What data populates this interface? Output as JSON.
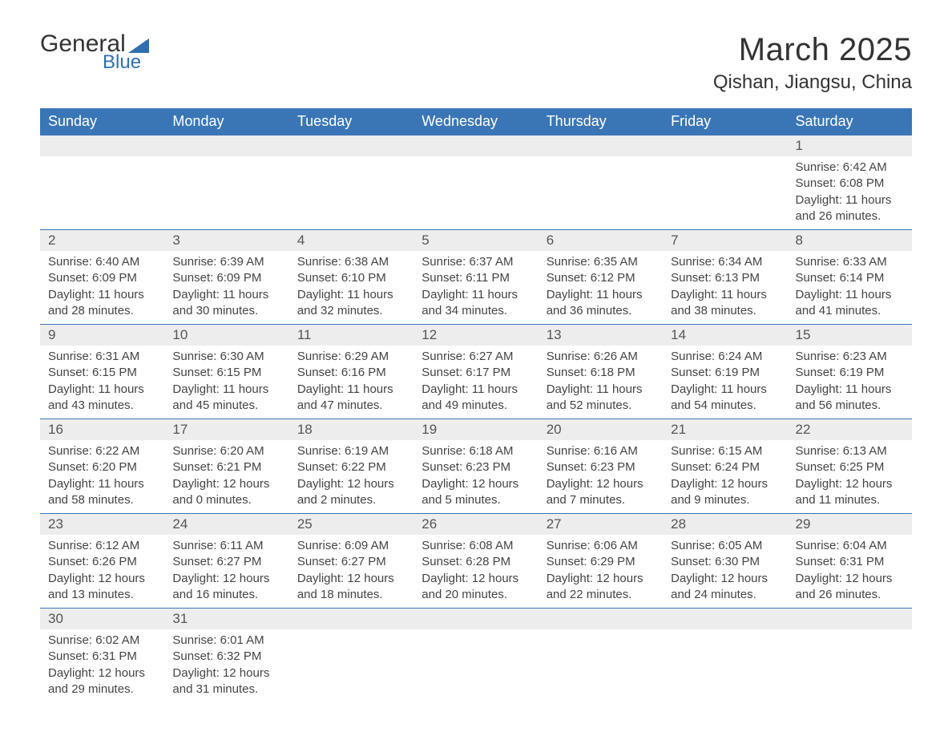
{
  "logo": {
    "text_general": "General",
    "text_blue": "Blue",
    "triangle_color": "#2f6fb0"
  },
  "title": "March 2025",
  "location": "Qishan, Jiangsu, China",
  "colors": {
    "header_bg": "#3a76b6",
    "header_text": "#ffffff",
    "daynum_bg": "#ededed",
    "row_divider": "#3a76b6",
    "body_text": "#444444",
    "title_text": "#333333"
  },
  "typography": {
    "title_fontsize": 40,
    "location_fontsize": 24,
    "header_fontsize": 18,
    "daynum_fontsize": 17,
    "info_fontsize": 15
  },
  "layout": {
    "columns": 7,
    "weeks": 6,
    "start_day_index": 6
  },
  "day_headers": [
    "Sunday",
    "Monday",
    "Tuesday",
    "Wednesday",
    "Thursday",
    "Friday",
    "Saturday"
  ],
  "weeks": [
    [
      null,
      null,
      null,
      null,
      null,
      null,
      {
        "n": "1",
        "sunrise": "Sunrise: 6:42 AM",
        "sunset": "Sunset: 6:08 PM",
        "daylight": "Daylight: 11 hours and 26 minutes."
      }
    ],
    [
      {
        "n": "2",
        "sunrise": "Sunrise: 6:40 AM",
        "sunset": "Sunset: 6:09 PM",
        "daylight": "Daylight: 11 hours and 28 minutes."
      },
      {
        "n": "3",
        "sunrise": "Sunrise: 6:39 AM",
        "sunset": "Sunset: 6:09 PM",
        "daylight": "Daylight: 11 hours and 30 minutes."
      },
      {
        "n": "4",
        "sunrise": "Sunrise: 6:38 AM",
        "sunset": "Sunset: 6:10 PM",
        "daylight": "Daylight: 11 hours and 32 minutes."
      },
      {
        "n": "5",
        "sunrise": "Sunrise: 6:37 AM",
        "sunset": "Sunset: 6:11 PM",
        "daylight": "Daylight: 11 hours and 34 minutes."
      },
      {
        "n": "6",
        "sunrise": "Sunrise: 6:35 AM",
        "sunset": "Sunset: 6:12 PM",
        "daylight": "Daylight: 11 hours and 36 minutes."
      },
      {
        "n": "7",
        "sunrise": "Sunrise: 6:34 AM",
        "sunset": "Sunset: 6:13 PM",
        "daylight": "Daylight: 11 hours and 38 minutes."
      },
      {
        "n": "8",
        "sunrise": "Sunrise: 6:33 AM",
        "sunset": "Sunset: 6:14 PM",
        "daylight": "Daylight: 11 hours and 41 minutes."
      }
    ],
    [
      {
        "n": "9",
        "sunrise": "Sunrise: 6:31 AM",
        "sunset": "Sunset: 6:15 PM",
        "daylight": "Daylight: 11 hours and 43 minutes."
      },
      {
        "n": "10",
        "sunrise": "Sunrise: 6:30 AM",
        "sunset": "Sunset: 6:15 PM",
        "daylight": "Daylight: 11 hours and 45 minutes."
      },
      {
        "n": "11",
        "sunrise": "Sunrise: 6:29 AM",
        "sunset": "Sunset: 6:16 PM",
        "daylight": "Daylight: 11 hours and 47 minutes."
      },
      {
        "n": "12",
        "sunrise": "Sunrise: 6:27 AM",
        "sunset": "Sunset: 6:17 PM",
        "daylight": "Daylight: 11 hours and 49 minutes."
      },
      {
        "n": "13",
        "sunrise": "Sunrise: 6:26 AM",
        "sunset": "Sunset: 6:18 PM",
        "daylight": "Daylight: 11 hours and 52 minutes."
      },
      {
        "n": "14",
        "sunrise": "Sunrise: 6:24 AM",
        "sunset": "Sunset: 6:19 PM",
        "daylight": "Daylight: 11 hours and 54 minutes."
      },
      {
        "n": "15",
        "sunrise": "Sunrise: 6:23 AM",
        "sunset": "Sunset: 6:19 PM",
        "daylight": "Daylight: 11 hours and 56 minutes."
      }
    ],
    [
      {
        "n": "16",
        "sunrise": "Sunrise: 6:22 AM",
        "sunset": "Sunset: 6:20 PM",
        "daylight": "Daylight: 11 hours and 58 minutes."
      },
      {
        "n": "17",
        "sunrise": "Sunrise: 6:20 AM",
        "sunset": "Sunset: 6:21 PM",
        "daylight": "Daylight: 12 hours and 0 minutes."
      },
      {
        "n": "18",
        "sunrise": "Sunrise: 6:19 AM",
        "sunset": "Sunset: 6:22 PM",
        "daylight": "Daylight: 12 hours and 2 minutes."
      },
      {
        "n": "19",
        "sunrise": "Sunrise: 6:18 AM",
        "sunset": "Sunset: 6:23 PM",
        "daylight": "Daylight: 12 hours and 5 minutes."
      },
      {
        "n": "20",
        "sunrise": "Sunrise: 6:16 AM",
        "sunset": "Sunset: 6:23 PM",
        "daylight": "Daylight: 12 hours and 7 minutes."
      },
      {
        "n": "21",
        "sunrise": "Sunrise: 6:15 AM",
        "sunset": "Sunset: 6:24 PM",
        "daylight": "Daylight: 12 hours and 9 minutes."
      },
      {
        "n": "22",
        "sunrise": "Sunrise: 6:13 AM",
        "sunset": "Sunset: 6:25 PM",
        "daylight": "Daylight: 12 hours and 11 minutes."
      }
    ],
    [
      {
        "n": "23",
        "sunrise": "Sunrise: 6:12 AM",
        "sunset": "Sunset: 6:26 PM",
        "daylight": "Daylight: 12 hours and 13 minutes."
      },
      {
        "n": "24",
        "sunrise": "Sunrise: 6:11 AM",
        "sunset": "Sunset: 6:27 PM",
        "daylight": "Daylight: 12 hours and 16 minutes."
      },
      {
        "n": "25",
        "sunrise": "Sunrise: 6:09 AM",
        "sunset": "Sunset: 6:27 PM",
        "daylight": "Daylight: 12 hours and 18 minutes."
      },
      {
        "n": "26",
        "sunrise": "Sunrise: 6:08 AM",
        "sunset": "Sunset: 6:28 PM",
        "daylight": "Daylight: 12 hours and 20 minutes."
      },
      {
        "n": "27",
        "sunrise": "Sunrise: 6:06 AM",
        "sunset": "Sunset: 6:29 PM",
        "daylight": "Daylight: 12 hours and 22 minutes."
      },
      {
        "n": "28",
        "sunrise": "Sunrise: 6:05 AM",
        "sunset": "Sunset: 6:30 PM",
        "daylight": "Daylight: 12 hours and 24 minutes."
      },
      {
        "n": "29",
        "sunrise": "Sunrise: 6:04 AM",
        "sunset": "Sunset: 6:31 PM",
        "daylight": "Daylight: 12 hours and 26 minutes."
      }
    ],
    [
      {
        "n": "30",
        "sunrise": "Sunrise: 6:02 AM",
        "sunset": "Sunset: 6:31 PM",
        "daylight": "Daylight: 12 hours and 29 minutes."
      },
      {
        "n": "31",
        "sunrise": "Sunrise: 6:01 AM",
        "sunset": "Sunset: 6:32 PM",
        "daylight": "Daylight: 12 hours and 31 minutes."
      },
      null,
      null,
      null,
      null,
      null
    ]
  ]
}
